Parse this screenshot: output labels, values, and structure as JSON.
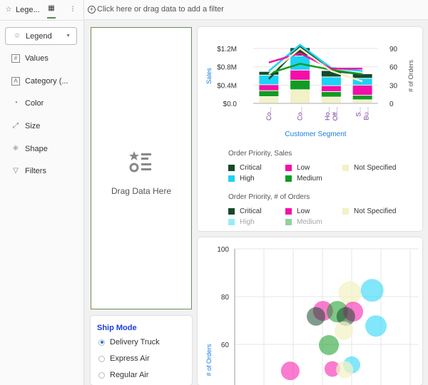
{
  "left_panel": {
    "tabs": [
      {
        "label": "Lege...",
        "icon": "legend-icon"
      },
      {
        "label": "",
        "icon": "layout-icon",
        "active": true
      },
      {
        "label": "",
        "icon": "sliders-icon"
      }
    ],
    "dropdown": {
      "value": "Legend",
      "icon": "legend-icon"
    },
    "items": [
      {
        "label": "Values",
        "icon": "hash-icon"
      },
      {
        "label": "Category (...",
        "icon": "category-icon"
      },
      {
        "label": "Color",
        "icon": "palette-icon"
      },
      {
        "label": "Size",
        "icon": "resize-icon"
      },
      {
        "label": "Shape",
        "icon": "shape-icon"
      },
      {
        "label": "Filters",
        "icon": "filter-icon"
      }
    ]
  },
  "filter_bar": {
    "placeholder": "Click here or drag data to add a filter",
    "icon": "add-circle-icon"
  },
  "drop_zone": {
    "label": "Drag Data Here",
    "icon": "legend-icon",
    "border_color": "#6b8e5a"
  },
  "ship_mode": {
    "title": "Ship Mode",
    "options": [
      {
        "label": "Delivery Truck",
        "selected": true
      },
      {
        "label": "Express Air",
        "selected": false
      },
      {
        "label": "Regular Air",
        "selected": false
      }
    ]
  },
  "colors": {
    "Critical": "#174a2c",
    "High": "#1cd3f5",
    "Low": "#f50fa8",
    "Medium": "#129b22",
    "Not Specified": "#f3f1c6",
    "axis_title": "#1a7fe0",
    "category_label": "#7a3b9e"
  },
  "chart_data": [
    {
      "type": "bar+line",
      "xlabel": "Customer Segment",
      "ylabel": "Sales",
      "y2label": "# of Orders",
      "categories": [
        "Co...",
        "Co...",
        "Ho... Off...",
        "S... Bu..."
      ],
      "yticks": [
        "$0.0",
        "$0.4M",
        "$0.8M",
        "$1.2M"
      ],
      "ylim": [
        0,
        1.2
      ],
      "y2ticks": [
        "0",
        "30",
        "60",
        "90"
      ],
      "y2lim": [
        0,
        90
      ],
      "bar_series": [
        {
          "name": "Not Specified",
          "values": [
            0.14,
            0.29,
            0.13,
            0.07
          ]
        },
        {
          "name": "Medium",
          "values": [
            0.13,
            0.21,
            0.12,
            0.1
          ]
        },
        {
          "name": "Low",
          "values": [
            0.13,
            0.22,
            0.13,
            0.22
          ]
        },
        {
          "name": "High",
          "values": [
            0.21,
            0.31,
            0.19,
            0.15
          ]
        },
        {
          "name": "Critical",
          "values": [
            0.08,
            0.18,
            0.14,
            0.1
          ]
        }
      ],
      "line_series": [
        {
          "name": "Critical",
          "values": [
            40,
            94,
            53,
            48
          ]
        },
        {
          "name": "High",
          "values": [
            53,
            96,
            58,
            53
          ]
        },
        {
          "name": "Low",
          "values": [
            67,
            82,
            57,
            57
          ]
        },
        {
          "name": "Medium",
          "values": [
            49,
            65,
            55,
            48
          ]
        },
        {
          "name": "Not Specified",
          "values": [
            48,
            90,
            53,
            36
          ]
        }
      ],
      "legends": [
        {
          "title": "Order Priority, Sales",
          "entries": [
            "Critical",
            "Low",
            "Not Specified",
            "High",
            "Medium"
          ]
        },
        {
          "title": "Order Priority, # of Orders",
          "entries": [
            "Critical",
            "Low",
            "Not Specified",
            "High",
            "Medium"
          ]
        }
      ]
    },
    {
      "type": "scatter",
      "ylabel": "# of Orders",
      "yticks": [
        "100",
        "80",
        "60"
      ],
      "ylim_visible": [
        47,
        100
      ],
      "points": [
        {
          "series": "Not Specified",
          "x": 3.94,
          "y": 81.6,
          "size": 16
        },
        {
          "series": "High",
          "x": 4.7,
          "y": 82.6,
          "size": 16
        },
        {
          "series": "Low",
          "x": 3.02,
          "y": 74.0,
          "size": 14
        },
        {
          "series": "Medium",
          "x": 3.51,
          "y": 73.7,
          "size": 15
        },
        {
          "series": "Low",
          "x": 4.05,
          "y": 73.7,
          "size": 14
        },
        {
          "series": "Critical",
          "x": 2.78,
          "y": 71.7,
          "size": 13
        },
        {
          "series": "Critical",
          "x": 3.8,
          "y": 71.7,
          "size": 13
        },
        {
          "series": "High",
          "x": 4.83,
          "y": 67.7,
          "size": 15
        },
        {
          "series": "Not Specified",
          "x": 3.73,
          "y": 65.7,
          "size": 13
        },
        {
          "series": "Medium",
          "x": 3.22,
          "y": 59.7,
          "size": 14
        },
        {
          "series": "High",
          "x": 4.0,
          "y": 51.4,
          "size": 12
        },
        {
          "series": "Low",
          "x": 1.9,
          "y": 48.9,
          "size": 13
        },
        {
          "series": "Low",
          "x": 3.34,
          "y": 49.7,
          "size": 11
        },
        {
          "series": "Not Specified",
          "x": 3.76,
          "y": 49.4,
          "size": 12
        }
      ]
    }
  ]
}
